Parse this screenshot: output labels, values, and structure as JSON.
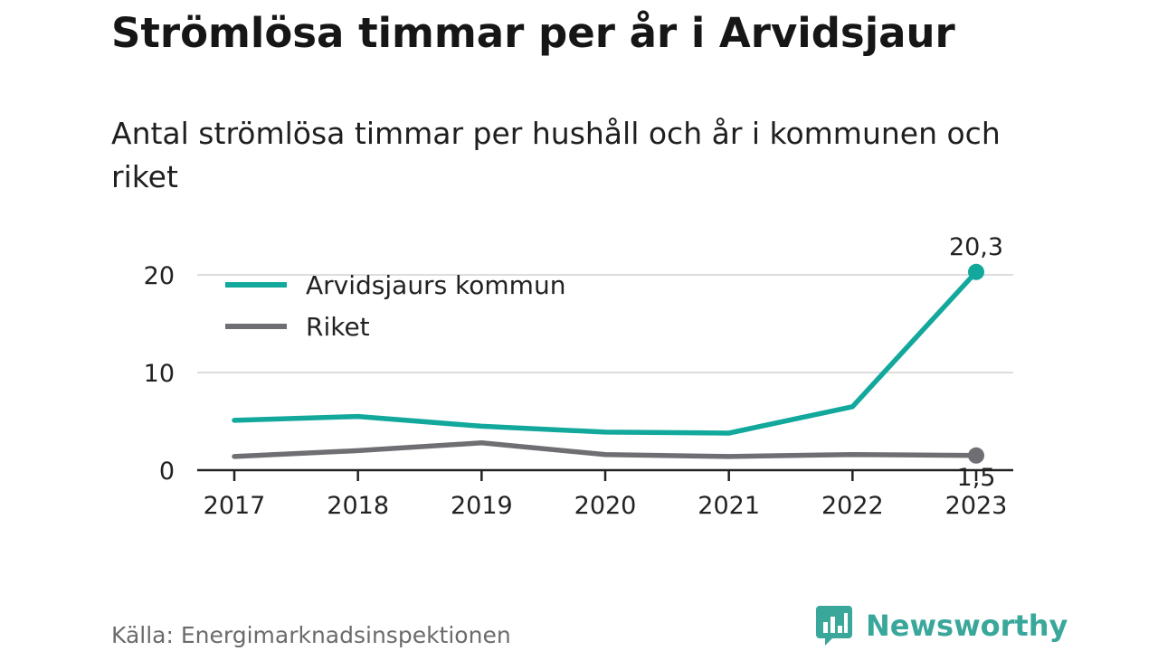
{
  "title": "Strömlösa timmar per år i Arvidsjaur",
  "subtitle": "Antal strömlösa timmar per hushåll och år i kommunen och riket",
  "source": "Källa: Energimarknadsinspektionen",
  "brand": {
    "name": "Newsworthy",
    "logo_icon": "bar-chart-speech-bubble-icon",
    "color": "#3aa79b"
  },
  "chart_data": {
    "type": "line",
    "title": "Strömlösa timmar per år i Arvidsjaur",
    "subtitle": "Antal strömlösa timmar per hushåll och år i kommunen och riket",
    "x": [
      "2017",
      "2018",
      "2019",
      "2020",
      "2021",
      "2022",
      "2023"
    ],
    "series": [
      {
        "name": "Arvidsjaurs kommun",
        "color": "#12a89c",
        "values": [
          5.1,
          5.5,
          4.5,
          3.9,
          3.8,
          6.5,
          20.3
        ],
        "end_label": "20,3"
      },
      {
        "name": "Riket",
        "color": "#6f6e73",
        "values": [
          1.4,
          2.0,
          2.8,
          1.6,
          1.4,
          1.6,
          1.5
        ],
        "end_label": "1,5"
      }
    ],
    "y_ticks": [
      "0",
      "10",
      "20"
    ],
    "ylim": [
      0,
      20.3
    ],
    "grid": true,
    "legend_position": "top-left"
  }
}
